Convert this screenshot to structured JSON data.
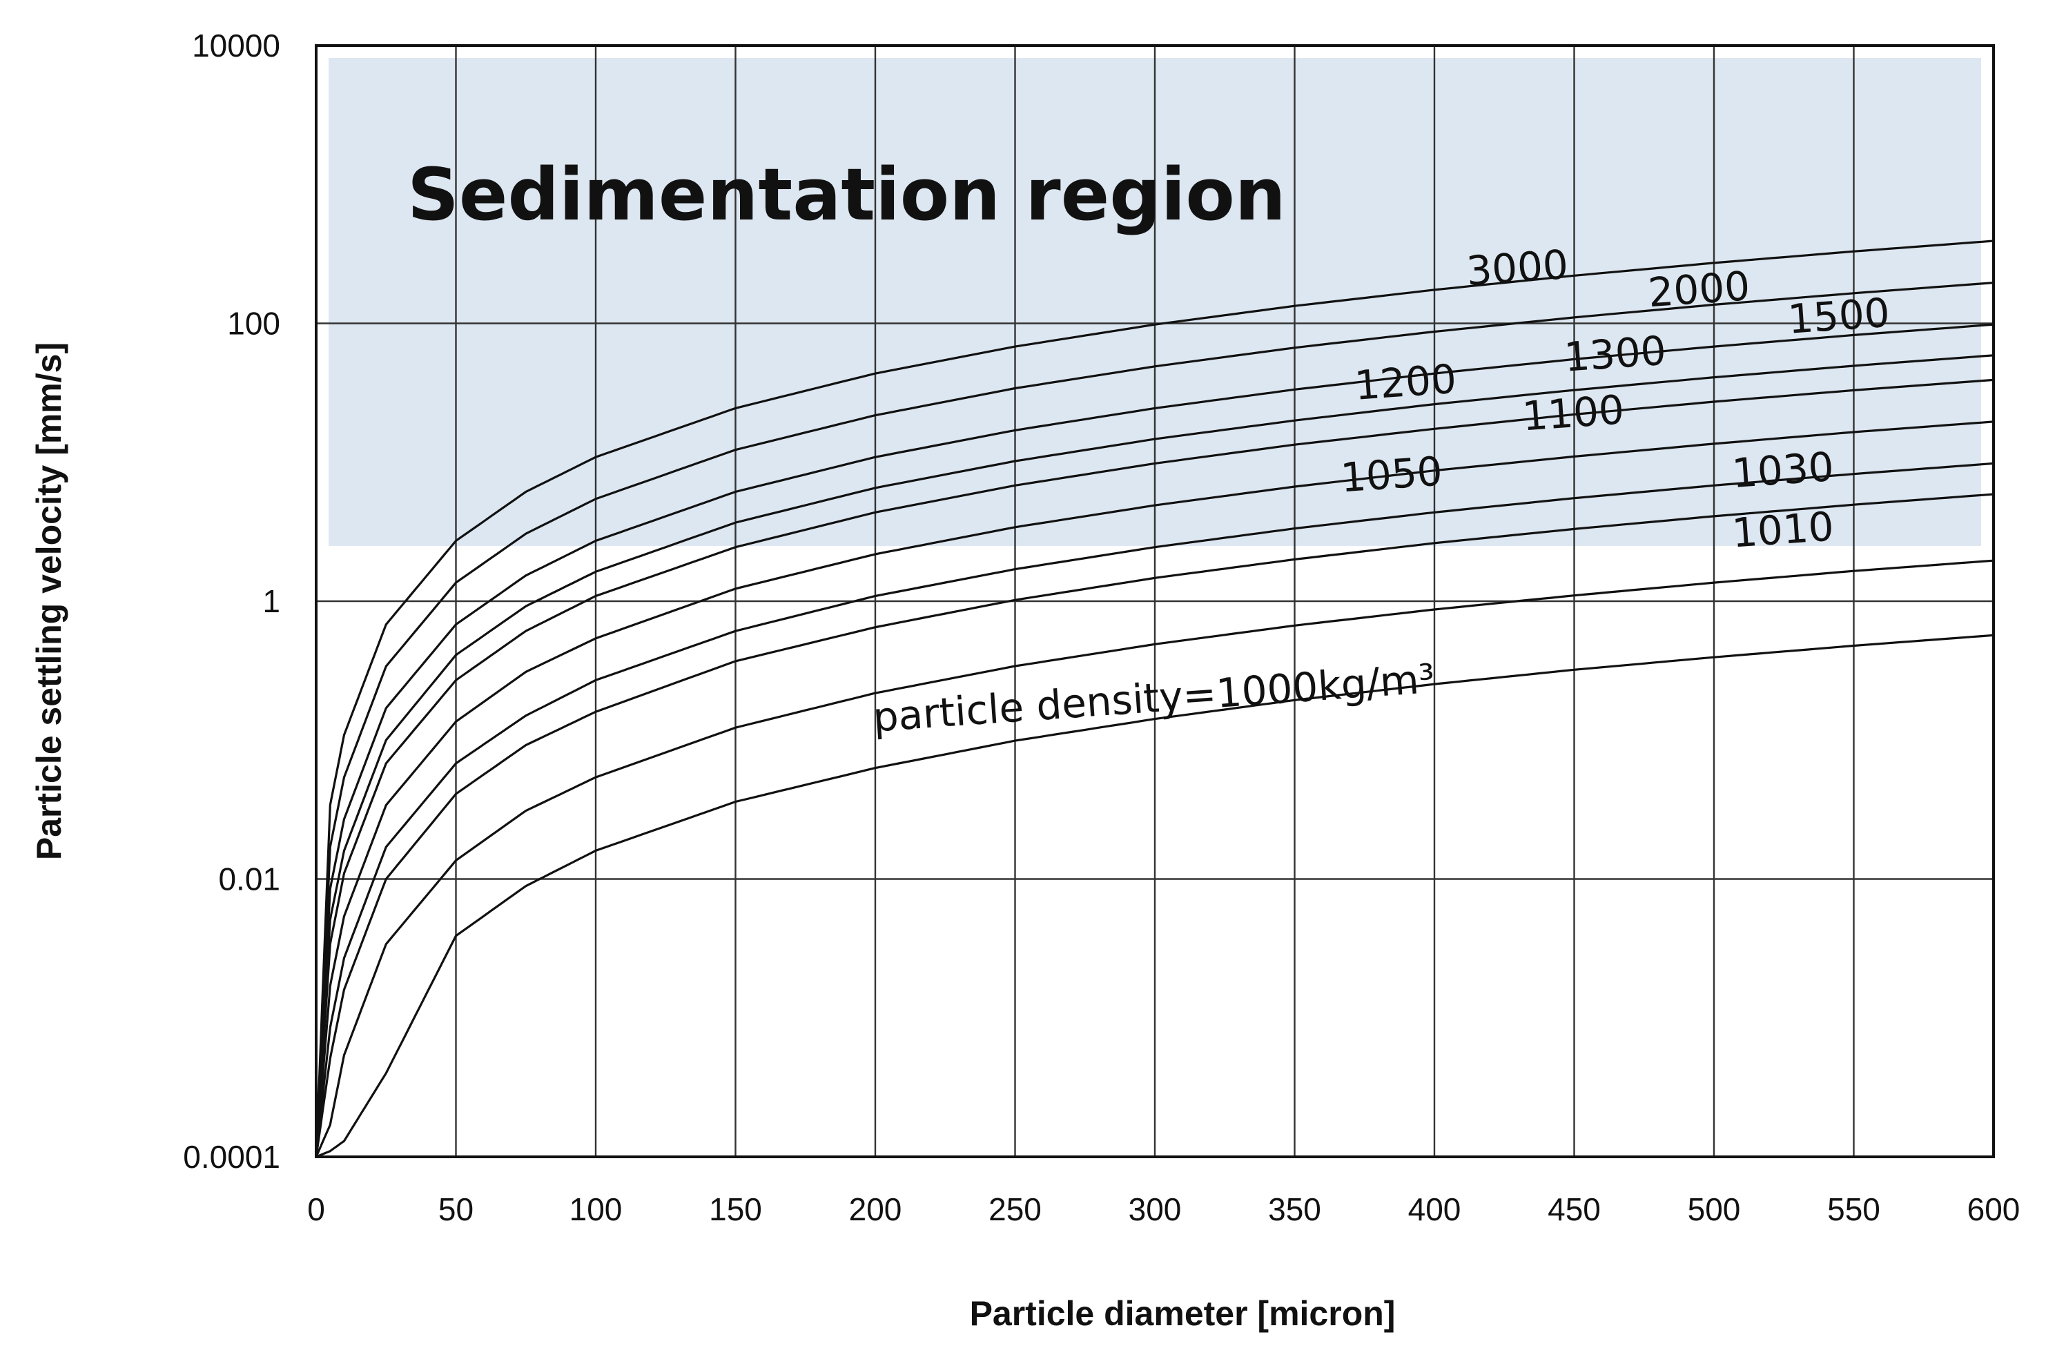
{
  "chart_data": {
    "type": "line",
    "title": "",
    "xlabel": "Particle diameter [micron]",
    "ylabel": "Particle settling velocity [mm/s]",
    "xlim": [
      0,
      600
    ],
    "ylim": [
      0.0001,
      10000
    ],
    "y_scale": "log",
    "grid": true,
    "x_ticks": [
      0,
      50,
      100,
      150,
      200,
      250,
      300,
      350,
      400,
      450,
      500,
      550,
      600
    ],
    "x_tick_labels": [
      "0",
      "50",
      "100",
      "150",
      "200",
      "250",
      "300",
      "350",
      "400",
      "450",
      "500",
      "550",
      "600"
    ],
    "y_ticks": [
      0.0001,
      0.01,
      1,
      100,
      10000
    ],
    "y_tick_labels": [
      "0.0001",
      "0.01",
      "1",
      "100",
      "10000"
    ],
    "region": {
      "label": "Sedimentation region",
      "y_range": [
        2.5,
        10000
      ],
      "color": "#dde7f1"
    },
    "x": [
      0,
      5,
      10,
      25,
      50,
      75,
      100,
      150,
      200,
      250,
      300,
      350,
      400,
      450,
      500,
      550,
      600
    ],
    "series": [
      {
        "name": "3000",
        "values": [
          0.0001,
          0.034,
          0.109,
          0.68,
          2.72,
          6.13,
          10.9,
          24.5,
          43.6,
          68.1,
          98.1,
          133.5,
          174.4,
          220.7,
          272.5,
          329.7,
          392.4
        ]
      },
      {
        "name": "2000",
        "values": [
          0.0001,
          0.017,
          0.054,
          0.34,
          1.36,
          3.06,
          5.45,
          12.3,
          21.8,
          34.1,
          49.0,
          66.8,
          87.2,
          110.4,
          136.3,
          164.9,
          196.2
        ]
      },
      {
        "name": "1500",
        "values": [
          0.0001,
          0.0085,
          0.027,
          0.17,
          0.68,
          1.53,
          2.72,
          6.13,
          10.9,
          17.0,
          24.5,
          33.4,
          43.6,
          55.2,
          68.1,
          82.4,
          98.1
        ]
      },
      {
        "name": "1300",
        "values": [
          0.0001,
          0.0051,
          0.016,
          0.1,
          0.41,
          0.92,
          1.63,
          3.68,
          6.54,
          10.2,
          14.7,
          20.0,
          26.2,
          33.1,
          40.9,
          49.5,
          58.9
        ]
      },
      {
        "name": "1200",
        "values": [
          0.0001,
          0.0034,
          0.011,
          0.068,
          0.27,
          0.61,
          1.09,
          2.45,
          4.36,
          6.81,
          9.81,
          13.4,
          17.4,
          22.1,
          27.3,
          33.0,
          39.2
        ]
      },
      {
        "name": "1100",
        "values": [
          0.0001,
          0.0017,
          0.0054,
          0.034,
          0.136,
          0.31,
          0.54,
          1.23,
          2.18,
          3.41,
          4.9,
          6.68,
          8.72,
          11.0,
          13.6,
          16.5,
          19.6
        ]
      },
      {
        "name": "1050",
        "values": [
          0.0001,
          0.00085,
          0.0027,
          0.017,
          0.068,
          0.15,
          0.27,
          0.61,
          1.09,
          1.7,
          2.45,
          3.34,
          4.36,
          5.52,
          6.81,
          8.24,
          9.81
        ]
      },
      {
        "name": "1030",
        "values": [
          0.0001,
          0.00051,
          0.0016,
          0.01,
          0.041,
          0.092,
          0.16,
          0.37,
          0.65,
          1.02,
          1.47,
          2.0,
          2.62,
          3.31,
          4.09,
          4.95,
          5.89
        ]
      },
      {
        "name": "1010",
        "values": [
          0.0001,
          0.00017,
          0.00054,
          0.0034,
          0.0136,
          0.031,
          0.054,
          0.123,
          0.218,
          0.341,
          0.49,
          0.668,
          0.872,
          1.1,
          1.36,
          1.65,
          1.96
        ]
      },
      {
        "name": "particle density=1000kg/m³",
        "values": [
          0.0001,
          0.00011,
          0.00013,
          0.0004,
          0.0039,
          0.0089,
          0.016,
          0.036,
          0.063,
          0.099,
          0.142,
          0.194,
          0.253,
          0.321,
          0.395,
          0.478,
          0.569
        ]
      }
    ],
    "curve_labels": [
      {
        "series": "3000",
        "text": "3000",
        "at_x": 430,
        "at_y": 200
      },
      {
        "series": "2000",
        "text": "2000",
        "at_x": 495,
        "at_y": 140
      },
      {
        "series": "1500",
        "text": "1500",
        "at_x": 545,
        "at_y": 90
      },
      {
        "series": "1300",
        "text": "1300",
        "at_x": 465,
        "at_y": 48
      },
      {
        "series": "1200",
        "text": "1200",
        "at_x": 390,
        "at_y": 30
      },
      {
        "series": "1100",
        "text": "1100",
        "at_x": 450,
        "at_y": 18
      },
      {
        "series": "1050",
        "text": "1050",
        "at_x": 385,
        "at_y": 6.5
      },
      {
        "series": "1030",
        "text": "1030",
        "at_x": 525,
        "at_y": 7
      },
      {
        "series": "1010",
        "text": "1010",
        "at_x": 525,
        "at_y": 2.6
      },
      {
        "series": "particle density=1000kg/m³",
        "text": "particle density=1000kg/m³",
        "at_x": 300,
        "at_y": 0.16
      }
    ]
  }
}
